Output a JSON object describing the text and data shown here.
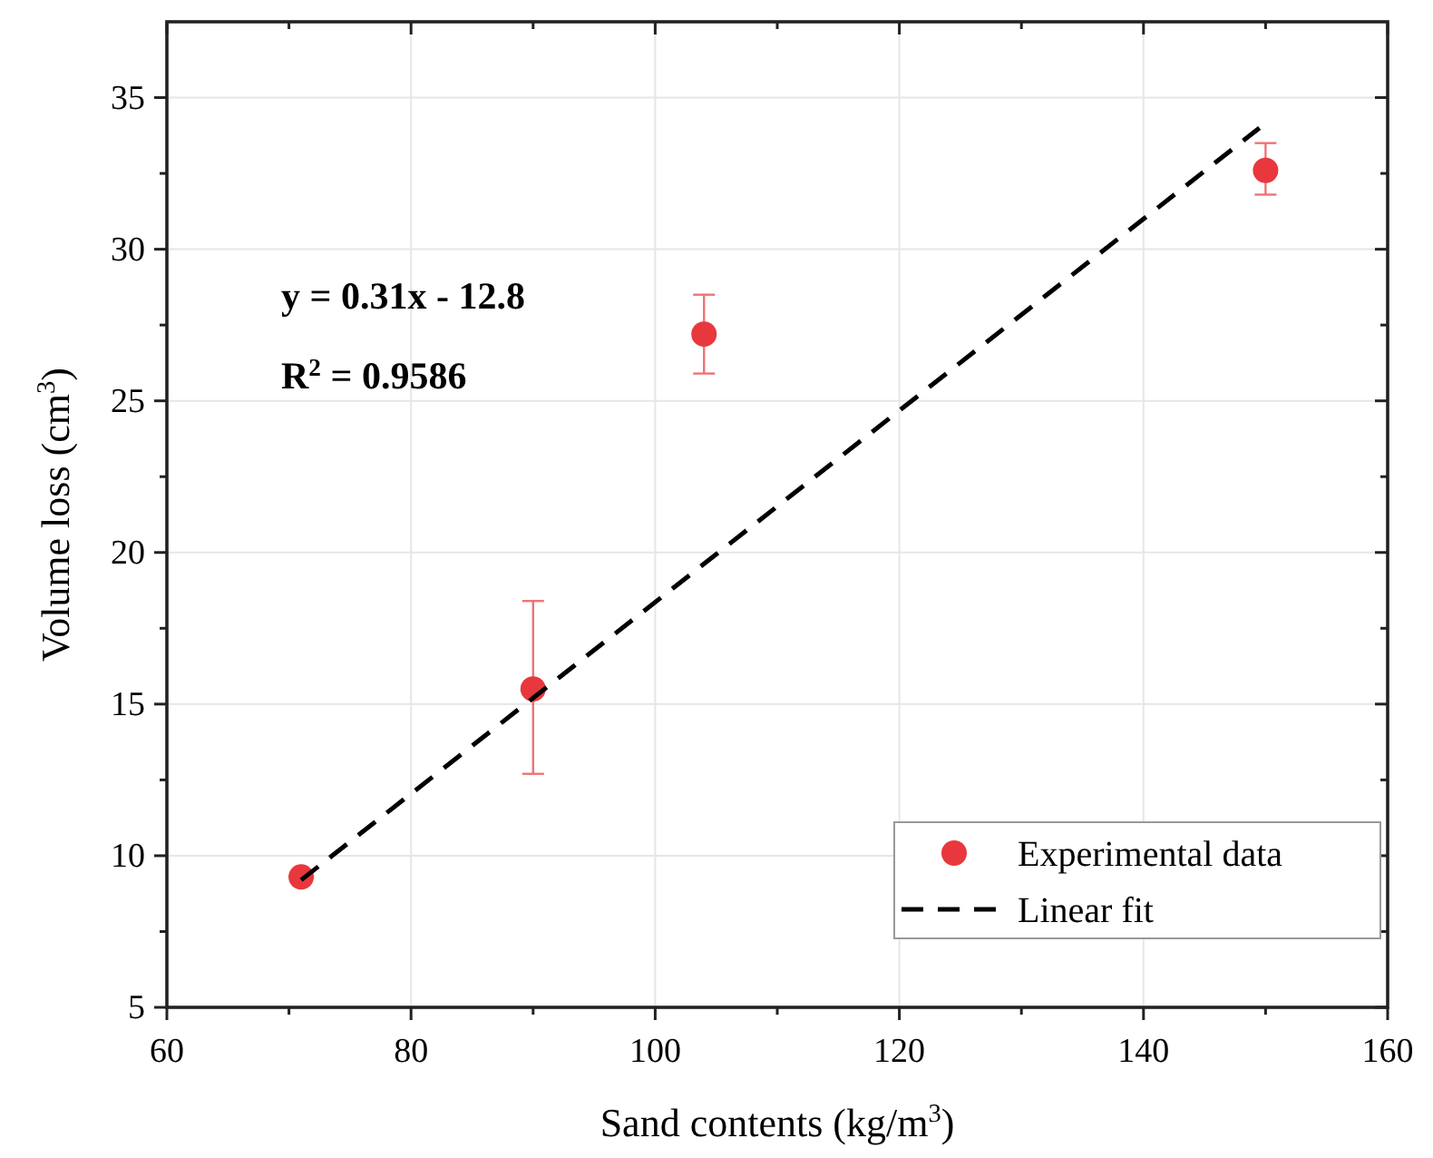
{
  "chart_data": {
    "type": "scatter",
    "xlabel": "Sand  contents (kg/m$^{3}$)",
    "ylabel": "Volume loss (cm$^{3}$)",
    "xlim": [
      60,
      160
    ],
    "xticks": [
      60,
      {
        "value": 70,
        "label": null
      },
      80,
      {
        "value": 90,
        "label": null
      },
      100,
      {
        "value": 110,
        "label": null
      },
      120,
      {
        "value": 130,
        "label": null
      },
      140,
      {
        "value": 150,
        "label": null
      },
      160
    ],
    "ylim": [
      5,
      37.5
    ],
    "yticks": [
      5,
      {
        "value": 7.5,
        "label": null
      },
      10,
      {
        "value": 12.5,
        "label": null
      },
      15,
      {
        "value": 17.5,
        "label": null
      },
      20,
      {
        "value": 22.5,
        "label": null
      },
      25,
      {
        "value": 27.5,
        "label": null
      },
      30,
      {
        "value": 32.5,
        "label": null
      },
      35
    ],
    "grid": true,
    "legend": "bottom right",
    "series": [
      {
        "name": "Experimental data",
        "marker": "circle",
        "color": "#e8383d",
        "x": [
          71,
          90,
          104,
          150
        ],
        "values": [
          9.3,
          15.5,
          27.2,
          32.6
        ],
        "errors": [
          null,
          [
            12.7,
            18.4
          ],
          [
            25.9,
            28.5
          ],
          [
            31.8,
            33.5
          ]
        ]
      },
      {
        "name": "Linear fit",
        "type": "line",
        "color": "#000000",
        "line_style": "dashed",
        "x": [
          71,
          149.5
        ],
        "values": [
          9.2,
          34
        ]
      }
    ],
    "annotations": [
      "y = 0.31x - 12.8",
      "R$^{2}$ = 0.9586"
    ]
  }
}
